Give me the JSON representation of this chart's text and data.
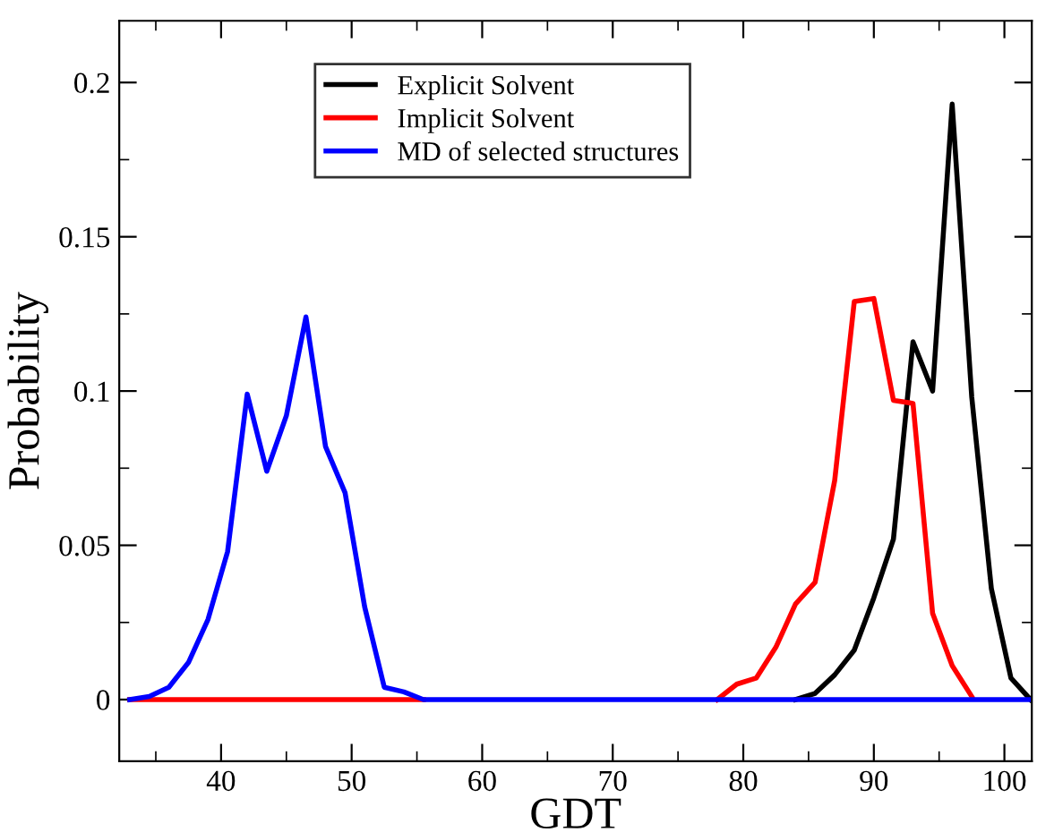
{
  "chart_data": {
    "type": "line",
    "xlabel": "GDT",
    "ylabel": "Probability",
    "x": [
      33,
      34.5,
      36,
      37.5,
      39,
      40.5,
      42,
      43.5,
      45,
      46.5,
      48,
      49.5,
      51,
      52.5,
      54,
      55.5,
      57,
      58.5,
      60,
      61.5,
      63,
      64.5,
      66,
      67.5,
      69,
      70.5,
      72,
      73.5,
      75,
      76.5,
      78,
      79.5,
      81,
      82.5,
      84,
      85.5,
      87,
      88.5,
      90,
      91.5,
      93,
      94.5,
      96,
      97.5,
      99,
      100.5,
      102
    ],
    "series": [
      {
        "name": "Explicit Solvent",
        "color": "#000000",
        "values": [
          null,
          null,
          null,
          null,
          null,
          null,
          null,
          null,
          null,
          null,
          null,
          null,
          null,
          null,
          null,
          null,
          null,
          null,
          null,
          null,
          null,
          null,
          null,
          null,
          null,
          null,
          null,
          null,
          null,
          null,
          null,
          null,
          null,
          null,
          0,
          0.002,
          0.008,
          0.016,
          0.033,
          0.052,
          0.116,
          0.1,
          0.193,
          0.098,
          0.036,
          0.007,
          0
        ]
      },
      {
        "name": "Implicit Solvent",
        "color": "#ff0000",
        "values": [
          0,
          0,
          0,
          0,
          0,
          0,
          0,
          0,
          0,
          0,
          0,
          0,
          0,
          0,
          0,
          0,
          null,
          null,
          null,
          null,
          null,
          null,
          null,
          null,
          null,
          null,
          null,
          null,
          null,
          null,
          0,
          0.005,
          0.007,
          0.017,
          0.031,
          0.038,
          0.071,
          0.129,
          0.13,
          0.097,
          0.096,
          0.028,
          0.011,
          0.001,
          null,
          null,
          null
        ]
      },
      {
        "name": "MD of selected structures",
        "color": "#0000ff",
        "values": [
          0,
          0.001,
          0.004,
          0.012,
          0.026,
          0.048,
          0.099,
          0.074,
          0.092,
          0.124,
          0.082,
          0.067,
          0.03,
          0.004,
          0.0025,
          0,
          0,
          0,
          0,
          0,
          0,
          0,
          0,
          0,
          0,
          0,
          0,
          0,
          0,
          0,
          0,
          0,
          0,
          0,
          0,
          0,
          0,
          0,
          0,
          0,
          0,
          0,
          0,
          0,
          0,
          0,
          0
        ]
      }
    ],
    "xlim": [
      32.2,
      102.1
    ],
    "xticks": [
      40,
      50,
      60,
      70,
      80,
      90,
      100
    ],
    "ylim": [
      -0.02,
      0.22
    ],
    "yticks": [
      0,
      0.05,
      0.1,
      0.15,
      0.2
    ],
    "legend": "top",
    "grid": false,
    "marker": "none",
    "line_style": "solid"
  }
}
